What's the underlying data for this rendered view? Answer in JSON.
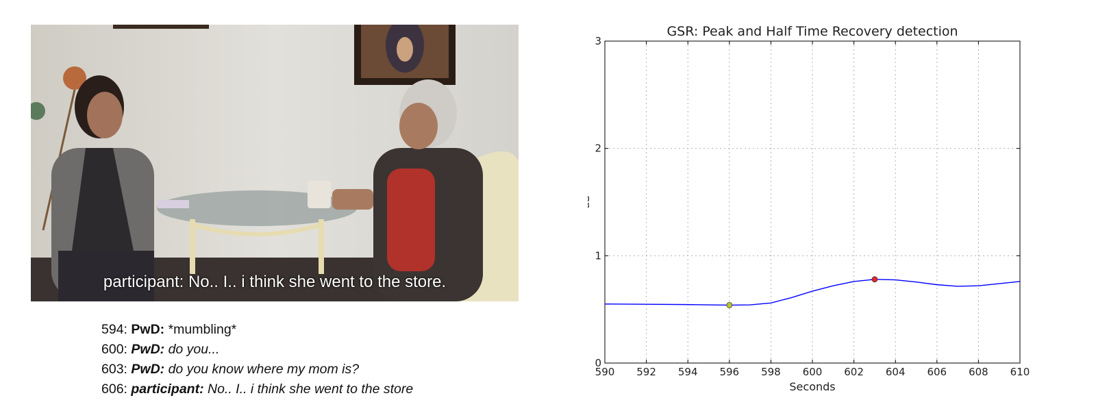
{
  "video": {
    "caption": "participant: No.. I.. i think she went to the store."
  },
  "transcript": [
    {
      "time": "594",
      "speaker": "PwD:",
      "text": "*mumbling*",
      "italic": false
    },
    {
      "time": "600",
      "speaker": "PwD:",
      "text": "do you...",
      "italic": true
    },
    {
      "time": "603",
      "speaker": "PwD:",
      "text": "do you know where my mom is?",
      "italic": true
    },
    {
      "time": "606",
      "speaker": "participant:",
      "text": "No.. I.. i think she went to the store",
      "italic": true
    }
  ],
  "chart_data": {
    "type": "line",
    "title": "GSR: Peak and Half Time Recovery detection",
    "xlabel": "Seconds",
    "ylabel": "uS",
    "xlim": [
      590,
      610
    ],
    "ylim": [
      0,
      3
    ],
    "xticks": [
      590,
      592,
      594,
      596,
      598,
      600,
      602,
      604,
      606,
      608,
      610
    ],
    "yticks": [
      0,
      1,
      2,
      3
    ],
    "grid": true,
    "series": [
      {
        "color": "#0000ff",
        "x": [
          590,
          592,
          594,
          596,
          597,
          598,
          599,
          600,
          601,
          602,
          603,
          604,
          605,
          606,
          607,
          608,
          609,
          610
        ],
        "y": [
          0.55,
          0.548,
          0.545,
          0.54,
          0.542,
          0.56,
          0.61,
          0.67,
          0.72,
          0.76,
          0.78,
          0.775,
          0.755,
          0.73,
          0.715,
          0.72,
          0.74,
          0.76
        ]
      }
    ],
    "markers": [
      {
        "x": 596,
        "y": 0.54,
        "color": "#b8c23a"
      },
      {
        "x": 603,
        "y": 0.78,
        "color": "#e8242a"
      }
    ]
  }
}
